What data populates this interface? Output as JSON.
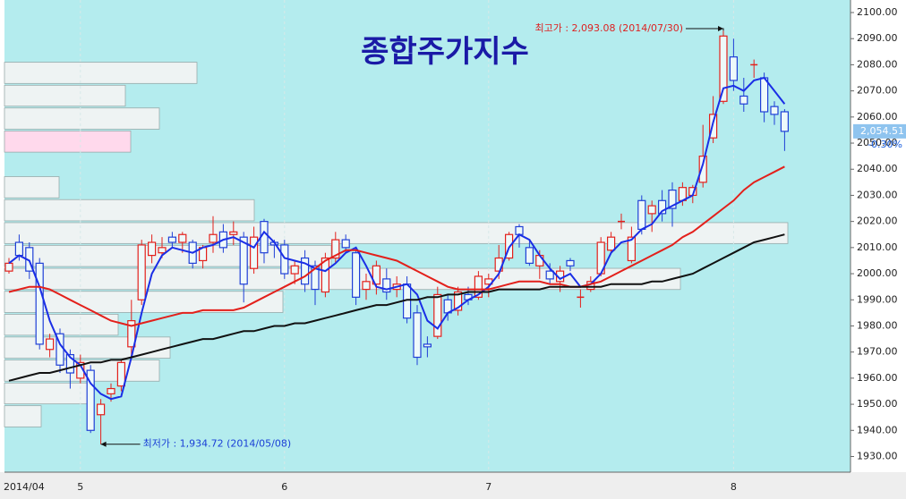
{
  "chart_data": {
    "type": "candlestick",
    "title": "종합주가지수",
    "categories": [
      "2014/04",
      null,
      null,
      null,
      null,
      null,
      null,
      "5",
      null,
      null,
      null,
      null,
      null,
      null,
      null,
      null,
      null,
      null,
      null,
      null,
      null,
      null,
      null,
      null,
      null,
      null,
      null,
      "6",
      null,
      null,
      null,
      null,
      null,
      null,
      null,
      null,
      null,
      null,
      null,
      null,
      null,
      null,
      null,
      null,
      null,
      null,
      null,
      "7",
      null,
      null,
      null,
      null,
      null,
      null,
      null,
      null,
      null,
      null,
      null,
      null,
      null,
      null,
      null,
      null,
      null,
      null,
      null,
      null,
      null,
      null,
      null,
      "8",
      null,
      null,
      null,
      null,
      null
    ],
    "open": [
      2001,
      2012,
      2010,
      2004,
      1971,
      1977,
      1969,
      1960,
      1963,
      1946,
      1954,
      1957,
      1972,
      1990,
      2007,
      2008,
      2014,
      2012,
      2012,
      2005,
      2012,
      2016,
      2015,
      2014,
      2002,
      2020,
      2012,
      2011,
      2000,
      2006,
      2003,
      1993,
      2006,
      2013,
      2008,
      1994,
      1996,
      1998,
      1994,
      1996,
      1985,
      1973,
      1976,
      1990,
      1986,
      1992,
      1991,
      1996,
      2001,
      2006,
      2018,
      2010,
      2003,
      2001,
      1997,
      2005,
      1991,
      1994,
      2000,
      2009,
      2020,
      2005,
      2028,
      2023,
      2028,
      2032,
      2028,
      2030,
      2035,
      2052,
      2066,
      2083,
      2068,
      2080,
      2075,
      2064,
      2062
    ],
    "high": [
      2006,
      2015,
      2012,
      2006,
      1977,
      1979,
      1971,
      1969,
      1965,
      1952,
      1958,
      1967,
      1990,
      2013,
      2015,
      2014,
      2016,
      2016,
      2013,
      2011,
      2022,
      2019,
      2020,
      2016,
      2018,
      2021,
      2013,
      2013,
      2005,
      2009,
      2005,
      2008,
      2016,
      2015,
      2010,
      2000,
      2005,
      2002,
      1999,
      1999,
      1988,
      1976,
      1995,
      1992,
      1995,
      1995,
      2001,
      2000,
      2011,
      2016,
      2019,
      2013,
      2009,
      2004,
      2003,
      2006,
      1994,
      1999,
      2014,
      2016,
      2023,
      2018,
      2030,
      2028,
      2032,
      2035,
      2035,
      2034,
      2057,
      2068,
      2093.08,
      2090,
      2075,
      2082,
      2077,
      2066,
      2063
    ],
    "low": [
      2000,
      2005,
      1998,
      1971,
      1968,
      1962,
      1956,
      1958,
      1939,
      1934.72,
      1951,
      1955,
      1968,
      1988,
      2004,
      2006,
      2010,
      2008,
      2002,
      2002,
      2008,
      2008,
      2011,
      1989,
      2000,
      2004,
      2006,
      1998,
      1996,
      1993,
      1988,
      1991,
      2004,
      2008,
      1988,
      1990,
      1992,
      1990,
      1991,
      1981,
      1965,
      1968,
      1975,
      1982,
      1984,
      1988,
      1990,
      1991,
      1998,
      2005,
      2010,
      2003,
      1998,
      1996,
      1993,
      2001,
      1987,
      1993,
      1999,
      2008,
      2017,
      2004,
      2015,
      2016,
      2020,
      2018,
      2026,
      2027,
      2033,
      2050,
      2065,
      2070,
      2062,
      2075,
      2058,
      2057,
      2047
    ],
    "close": [
      2004,
      2007,
      2001,
      1973,
      1975,
      1965,
      1962,
      1966,
      1940,
      1950,
      1956,
      1966,
      1982,
      2011,
      2012,
      2010,
      2012,
      2015,
      2004,
      2010,
      2015,
      2010,
      2016,
      1996,
      2014,
      2008,
      2011,
      2000,
      2003,
      1996,
      1994,
      2006,
      2013,
      2010,
      1991,
      1997,
      2003,
      1993,
      1996,
      1983,
      1968,
      1972,
      1992,
      1985,
      1993,
      1990,
      1999,
      1998,
      2006,
      2015,
      2015,
      2004,
      2007,
      1998,
      2001,
      2003,
      1991,
      1997,
      2012,
      2014,
      2020,
      2014,
      2017,
      2026,
      2023,
      2025,
      2033,
      2033,
      2045,
      2061,
      2091,
      2074,
      2065,
      2080,
      2062,
      2061,
      2054.51
    ],
    "up_color": "#e3201b",
    "down_color": "#1f3fd6",
    "lines": [
      {
        "color": "#1a2ee6",
        "values": [
          2004,
          2007,
          2005,
          1995,
          1982,
          1973,
          1968,
          1965,
          1958,
          1954,
          1952,
          1953,
          1968,
          1985,
          2000,
          2007,
          2010,
          2009,
          2008,
          2010,
          2011,
          2013,
          2014,
          2012,
          2010,
          2016,
          2012,
          2006,
          2005,
          2004,
          2002,
          2001,
          2004,
          2008,
          2010,
          2003,
          1995,
          1994,
          1995,
          1996,
          1992,
          1982,
          1979,
          1985,
          1987,
          1990,
          1992,
          1995,
          2000,
          2010,
          2015,
          2013,
          2007,
          2002,
          1998,
          2000,
          1995,
          1996,
          2000,
          2008,
          2012,
          2013,
          2017,
          2019,
          2024,
          2026,
          2028,
          2030,
          2042,
          2058,
          2071,
          2072,
          2070,
          2074,
          2075,
          2070,
          2065
        ]
      },
      {
        "color": "#e3201b",
        "values": [
          1993,
          1994,
          1995,
          1995,
          1994,
          1992,
          1990,
          1988,
          1986,
          1984,
          1982,
          1981,
          1980,
          1981,
          1982,
          1983,
          1984,
          1985,
          1985,
          1986,
          1986,
          1986,
          1986,
          1987,
          1989,
          1991,
          1993,
          1995,
          1997,
          1999,
          2002,
          2005,
          2007,
          2009,
          2009,
          2008,
          2007,
          2006,
          2005,
          2003,
          2001,
          1999,
          1997,
          1995,
          1994,
          1994,
          1994,
          1994,
          1995,
          1996,
          1997,
          1997,
          1997,
          1996,
          1996,
          1995,
          1995,
          1996,
          1997,
          1999,
          2001,
          2003,
          2005,
          2007,
          2009,
          2011,
          2014,
          2016,
          2019,
          2022,
          2025,
          2028,
          2032,
          2035,
          2037,
          2039,
          2041
        ]
      },
      {
        "color": "#111111",
        "values": [
          1959,
          1960,
          1961,
          1962,
          1962,
          1963,
          1964,
          1965,
          1966,
          1966,
          1967,
          1967,
          1968,
          1969,
          1970,
          1971,
          1972,
          1973,
          1974,
          1975,
          1975,
          1976,
          1977,
          1978,
          1978,
          1979,
          1980,
          1980,
          1981,
          1981,
          1982,
          1983,
          1984,
          1985,
          1986,
          1987,
          1988,
          1988,
          1989,
          1990,
          1990,
          1991,
          1991,
          1992,
          1992,
          1993,
          1993,
          1993,
          1994,
          1994,
          1994,
          1994,
          1994,
          1995,
          1995,
          1995,
          1995,
          1995,
          1995,
          1996,
          1996,
          1996,
          1996,
          1997,
          1997,
          1998,
          1999,
          2000,
          2002,
          2004,
          2006,
          2008,
          2010,
          2012,
          2013,
          2014,
          2015
        ]
      }
    ],
    "volume_profile": {
      "bins": [
        1941.0,
        1949.8,
        1958.5,
        1967.3,
        1976.1,
        1984.8,
        1993.6,
        2002.4,
        2011.2,
        2019.9,
        2028.7,
        2037.5,
        2046.2,
        2055.0,
        2063.8,
        2072.5,
        2081.3
      ],
      "values": [
        41,
        97,
        173,
        185,
        127,
        311,
        755,
        365,
        875,
        279,
        61,
        0,
        141,
        173,
        135,
        215
      ],
      "xlim": [
        0,
        945
      ],
      "color": "#eef3f3",
      "current_color": "#ffd9ec"
    },
    "ylim": [
      1924,
      2104.8
    ],
    "yticks": [
      {
        "value": 1930,
        "label": "1930.00"
      },
      {
        "value": 1940,
        "label": "1940.00"
      },
      {
        "value": 1950,
        "label": "1950.00"
      },
      {
        "value": 1960,
        "label": "1960.00"
      },
      {
        "value": 1970,
        "label": "1970.00"
      },
      {
        "value": 1980,
        "label": "1980.00"
      },
      {
        "value": 1990,
        "label": "1990.00"
      },
      {
        "value": 2000,
        "label": "2000.00"
      },
      {
        "value": 2010,
        "label": "2010.00"
      },
      {
        "value": 2020,
        "label": "2020.00"
      },
      {
        "value": 2030,
        "label": "2030.00"
      },
      {
        "value": 2040,
        "label": "2040.00"
      },
      {
        "value": 2050,
        "label": "2050.00"
      },
      {
        "value": 2060,
        "label": "2060.00"
      },
      {
        "value": 2070,
        "label": "2070.00"
      },
      {
        "value": 2080,
        "label": "2080.00"
      },
      {
        "value": 2090,
        "label": "2090.00"
      },
      {
        "value": 2100,
        "label": "2100.00"
      }
    ],
    "max_annotation": "최고가 : 2,093.08 (2014/07/30)",
    "min_annotation": "최저가 : 1,934.72 (2014/05/08)",
    "last_price": {
      "value": 2054.51,
      "label": "2,054.51"
    },
    "change_label": "-0.30%",
    "background": "#b4ecee"
  }
}
